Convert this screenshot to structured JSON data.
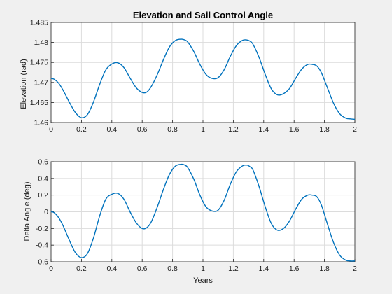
{
  "chart_data": [
    {
      "type": "line",
      "title": "Elevation and Sail Control Angle",
      "xlabel": "",
      "ylabel": "Elevation (rad)",
      "xlim": [
        0,
        2
      ],
      "ylim": [
        1.46,
        1.485
      ],
      "xticks": [
        "0",
        "0.2",
        "0.4",
        "0.6",
        "0.8",
        "1",
        "1.2",
        "1.4",
        "1.6",
        "1.8",
        "2"
      ],
      "yticks": [
        "1.46",
        "1.465",
        "1.47",
        "1.475",
        "1.48",
        "1.485"
      ],
      "grid": true,
      "color": "#0072bd",
      "series": [
        {
          "x": [
            0,
            0.02,
            0.05,
            0.08,
            0.12,
            0.16,
            0.2,
            0.24,
            0.28,
            0.32,
            0.36,
            0.4,
            0.44,
            0.48,
            0.52,
            0.56,
            0.6,
            0.63,
            0.66,
            0.7,
            0.74,
            0.78,
            0.82,
            0.86,
            0.88,
            0.9,
            0.94,
            0.98,
            1.02,
            1.06,
            1.1,
            1.14,
            1.18,
            1.22,
            1.26,
            1.29,
            1.31,
            1.33,
            1.37,
            1.41,
            1.45,
            1.49,
            1.53,
            1.57,
            1.61,
            1.65,
            1.69,
            1.72,
            1.75,
            1.78,
            1.82,
            1.86,
            1.9,
            1.94,
            1.97,
            2.0
          ],
          "y": [
            1.471,
            1.4708,
            1.4698,
            1.468,
            1.4651,
            1.4625,
            1.4612,
            1.462,
            1.4652,
            1.4695,
            1.4731,
            1.4746,
            1.4749,
            1.4737,
            1.4711,
            1.4687,
            1.4675,
            1.4676,
            1.469,
            1.472,
            1.4757,
            1.4789,
            1.4805,
            1.4808,
            1.4806,
            1.4801,
            1.4777,
            1.4745,
            1.472,
            1.471,
            1.4712,
            1.4732,
            1.4765,
            1.4792,
            1.4805,
            1.4806,
            1.4803,
            1.4795,
            1.4762,
            1.472,
            1.4684,
            1.4669,
            1.4672,
            1.4685,
            1.471,
            1.4733,
            1.4745,
            1.4745,
            1.4741,
            1.4724,
            1.4686,
            1.4648,
            1.4622,
            1.4611,
            1.4609,
            1.4608
          ]
        }
      ]
    },
    {
      "type": "line",
      "title": "",
      "xlabel": "Years",
      "ylabel": "Delta Angle (deg)",
      "xlim": [
        0,
        2
      ],
      "ylim": [
        -0.6,
        0.6
      ],
      "xticks": [
        "0",
        "0.2",
        "0.4",
        "0.6",
        "0.8",
        "1",
        "1.2",
        "1.4",
        "1.6",
        "1.8",
        "2"
      ],
      "yticks": [
        "-0.6",
        "-0.4",
        "-0.2",
        "0",
        "0.2",
        "0.4",
        "0.6"
      ],
      "grid": true,
      "color": "#0072bd",
      "series": [
        {
          "x": [
            0,
            0.02,
            0.05,
            0.08,
            0.12,
            0.16,
            0.2,
            0.24,
            0.28,
            0.32,
            0.36,
            0.4,
            0.44,
            0.48,
            0.52,
            0.56,
            0.6,
            0.63,
            0.66,
            0.7,
            0.74,
            0.78,
            0.82,
            0.86,
            0.88,
            0.9,
            0.94,
            0.98,
            1.02,
            1.06,
            1.1,
            1.14,
            1.18,
            1.22,
            1.26,
            1.29,
            1.31,
            1.33,
            1.37,
            1.41,
            1.45,
            1.49,
            1.53,
            1.57,
            1.61,
            1.65,
            1.69,
            1.72,
            1.75,
            1.78,
            1.82,
            1.86,
            1.9,
            1.94,
            1.97,
            2.0
          ],
          "y": [
            0.0,
            -0.01,
            -0.07,
            -0.17,
            -0.34,
            -0.49,
            -0.55,
            -0.5,
            -0.31,
            -0.05,
            0.15,
            0.21,
            0.22,
            0.15,
            0.0,
            -0.13,
            -0.2,
            -0.19,
            -0.12,
            0.06,
            0.27,
            0.45,
            0.55,
            0.57,
            0.56,
            0.53,
            0.39,
            0.2,
            0.06,
            0.01,
            0.02,
            0.14,
            0.33,
            0.48,
            0.55,
            0.56,
            0.54,
            0.5,
            0.3,
            0.06,
            -0.14,
            -0.22,
            -0.2,
            -0.11,
            0.03,
            0.15,
            0.2,
            0.2,
            0.18,
            0.08,
            -0.15,
            -0.37,
            -0.52,
            -0.58,
            -0.59,
            -0.59
          ]
        }
      ]
    }
  ]
}
